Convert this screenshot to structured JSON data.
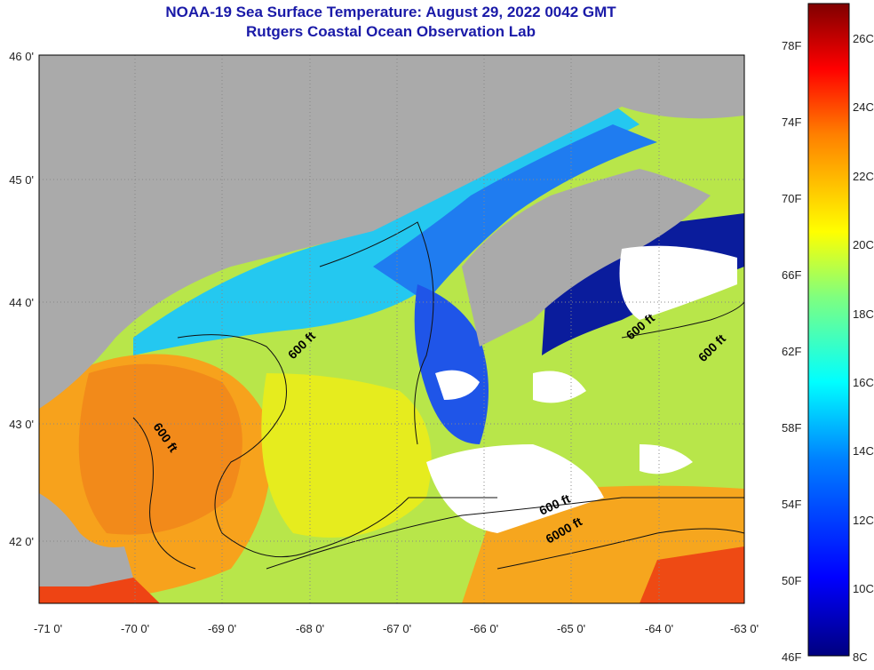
{
  "title": {
    "line1": "NOAA-19 Sea Surface Temperature:  August 29, 2022 0042 GMT",
    "line2": "Rutgers Coastal Ocean Observation Lab"
  },
  "map": {
    "lon_labels": [
      "-71 0'",
      "-70 0'",
      "-69 0'",
      "-68 0'",
      "-67 0'",
      "-66 0'",
      "-65 0'",
      "-64 0'",
      "-63 0'"
    ],
    "lat_labels": [
      "46 0'",
      "45 0'",
      "44 0'",
      "43 0'",
      "42 0'"
    ],
    "contour_labels": [
      "600 ft",
      "600 ft",
      "600 ft",
      "600 ft",
      "600 ft",
      "6000 ft"
    ],
    "colors": {
      "land": "#aaaaaa",
      "cloud": "#ffffff",
      "grid": "#888888"
    }
  },
  "colorbar": {
    "f_labels": [
      "78F",
      "74F",
      "70F",
      "66F",
      "62F",
      "58F",
      "54F",
      "50F",
      "46F"
    ],
    "c_labels": [
      "26C",
      "24C",
      "22C",
      "20C",
      "18C",
      "16C",
      "14C",
      "12C",
      "10C",
      "8C"
    ],
    "colors": [
      "#00007f",
      "#0000ff",
      "#007fff",
      "#00ffff",
      "#7fff7f",
      "#ffff00",
      "#ff7f00",
      "#ff0000",
      "#7f0000"
    ]
  }
}
